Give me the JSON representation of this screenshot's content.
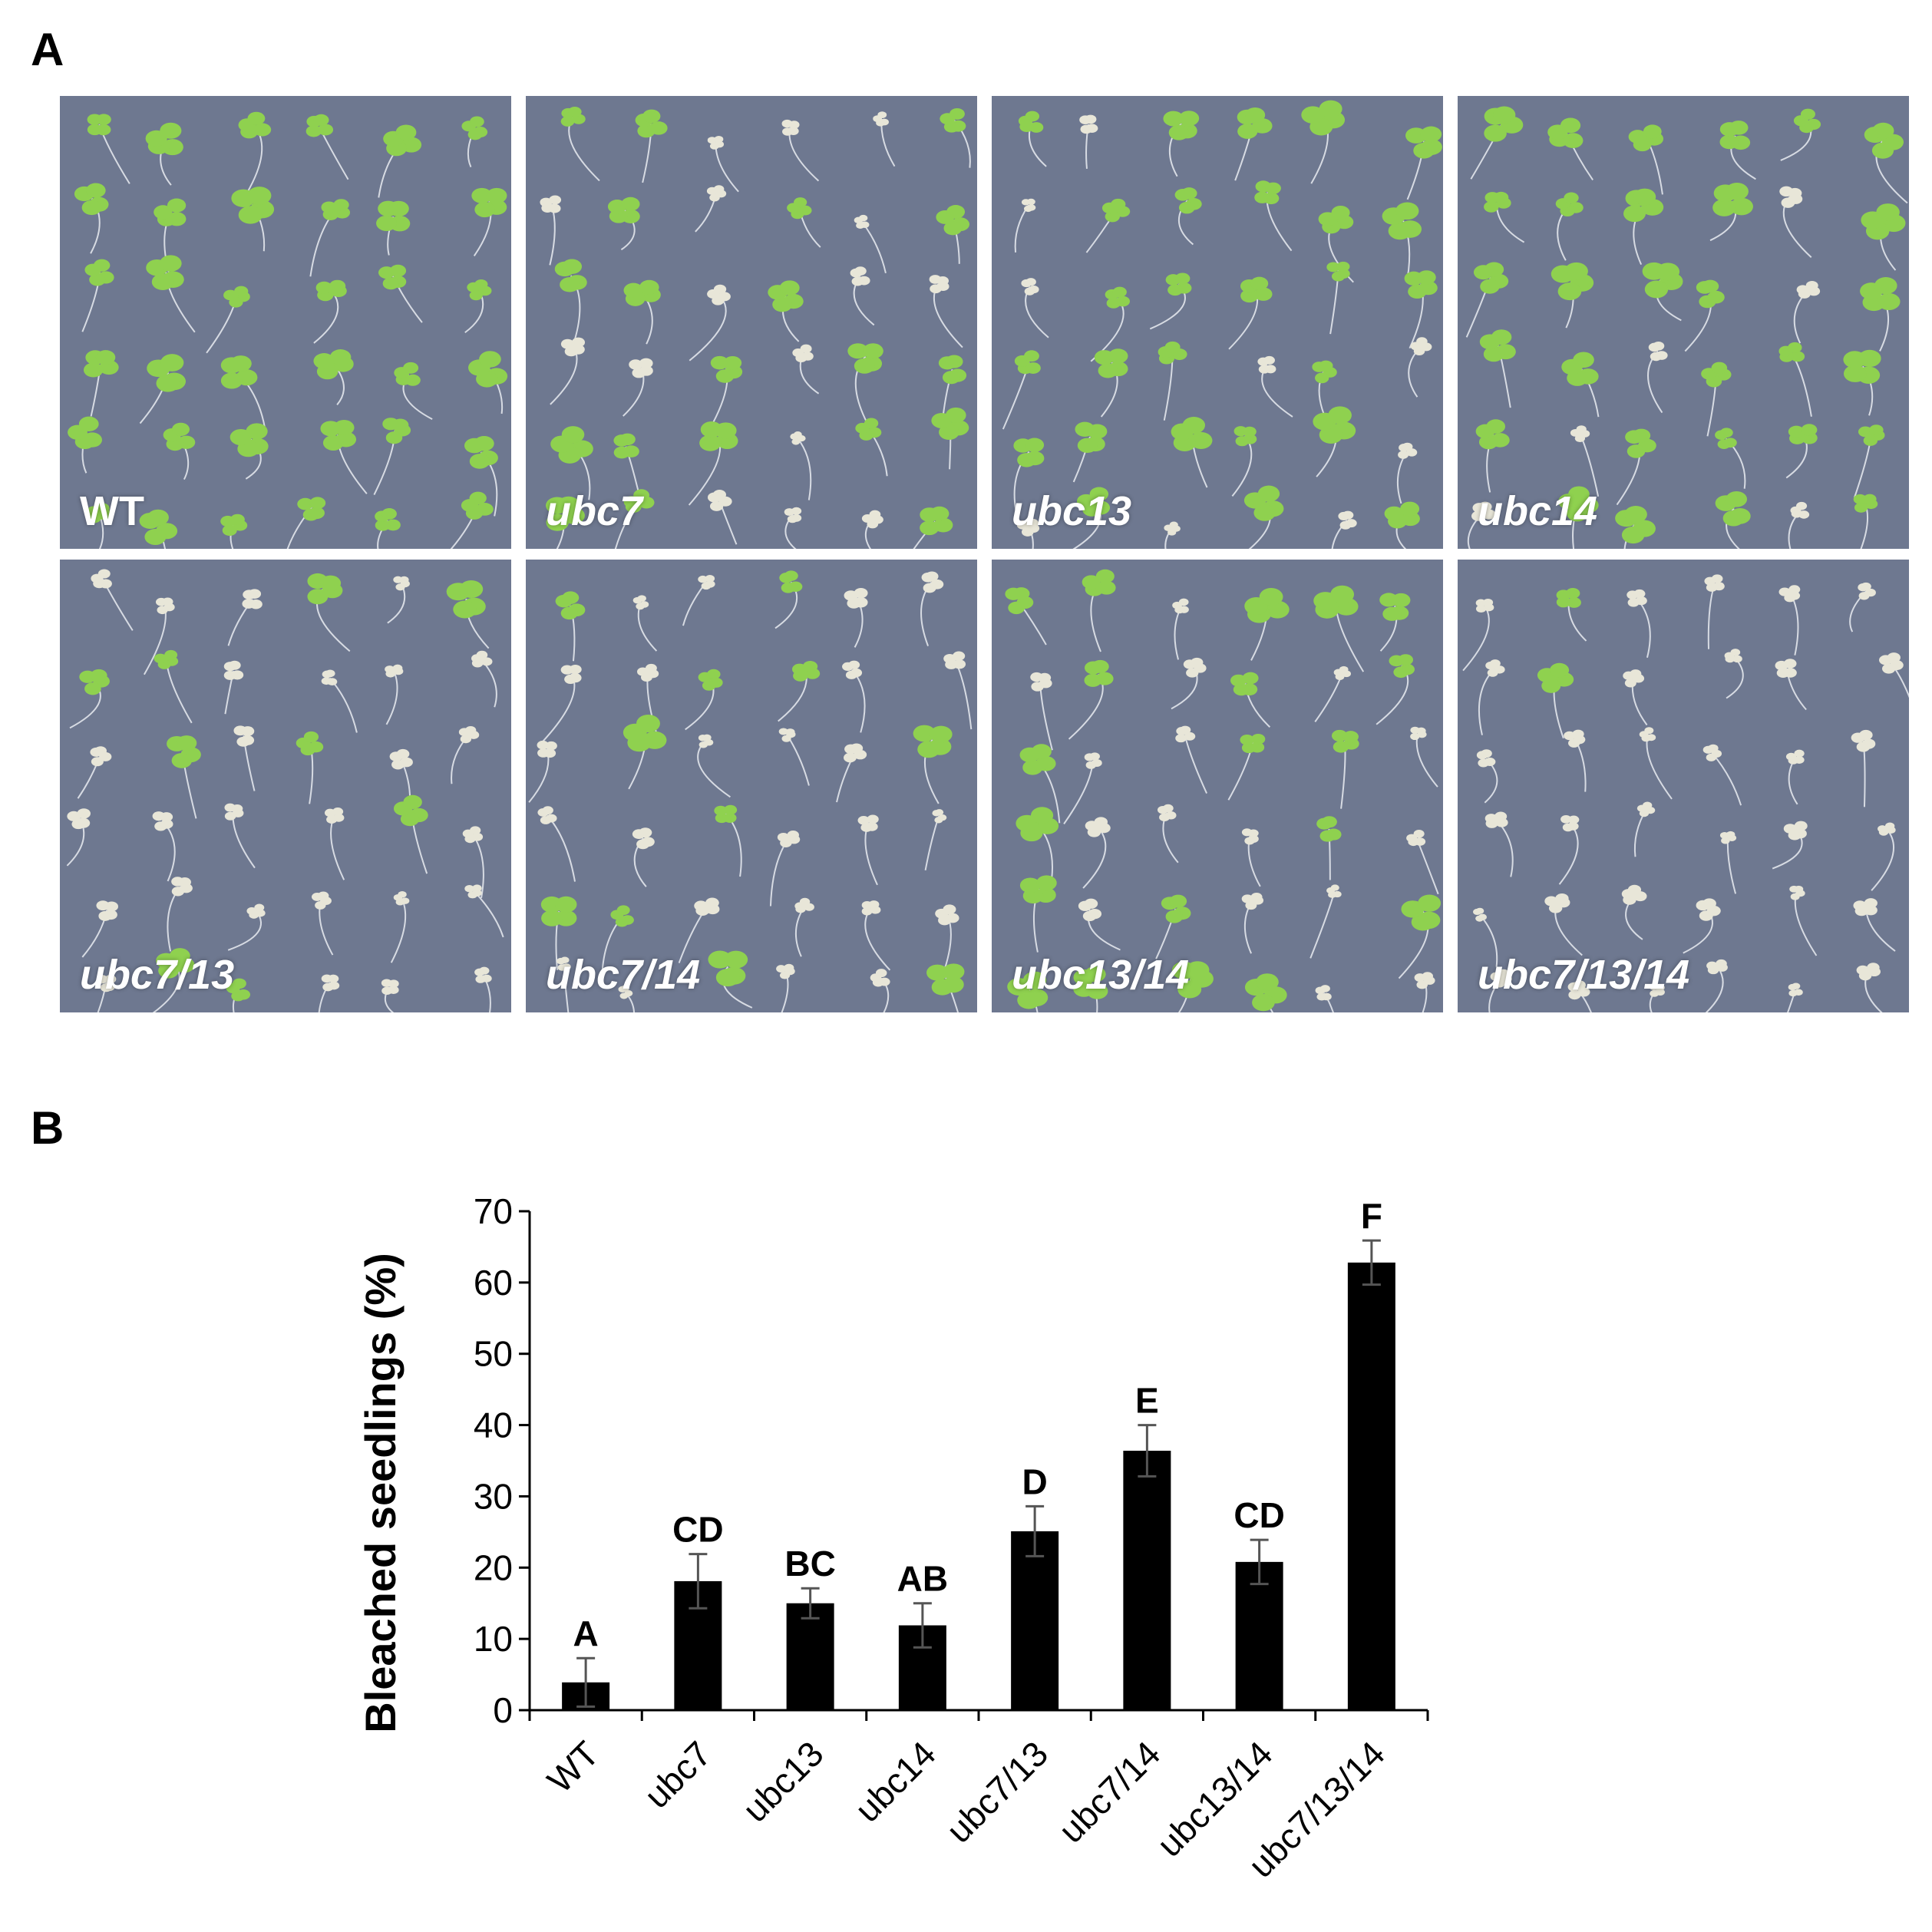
{
  "panels": {
    "a": "A",
    "b": "B"
  },
  "photos": [
    {
      "label": "WT",
      "italic": false,
      "green_fraction": 0.98
    },
    {
      "label": "ubc7",
      "italic": true,
      "green_fraction": 0.55
    },
    {
      "label": "ubc13",
      "italic": true,
      "green_fraction": 0.75
    },
    {
      "label": "ubc14",
      "italic": true,
      "green_fraction": 0.8
    },
    {
      "label": "ubc7/13",
      "italic": true,
      "green_fraction": 0.2
    },
    {
      "label": "ubc7/14",
      "italic": true,
      "green_fraction": 0.25
    },
    {
      "label": "ubc13/14",
      "italic": true,
      "green_fraction": 0.6
    },
    {
      "label": "ubc7/13/14",
      "italic": true,
      "green_fraction": 0.05
    }
  ],
  "colors": {
    "plate": "#6e7890",
    "green_seedling": "#8fd14f",
    "bleached_seedling": "#e8e6d8",
    "bar": "#000000",
    "error_bar": "#555555"
  },
  "chart_data": {
    "type": "bar",
    "title": "",
    "xlabel": "",
    "ylabel": "Bleached seedlings (%)",
    "ylim": [
      0,
      70
    ],
    "yticks": [
      0,
      10,
      20,
      30,
      40,
      50,
      60,
      70
    ],
    "categories": [
      "WT",
      "ubc7",
      "ubc13",
      "ubc14",
      "ubc7/13",
      "ubc7/14",
      "ubc13/14",
      "ubc7/13/14"
    ],
    "values": [
      3.9,
      18.1,
      15.0,
      11.9,
      25.1,
      36.4,
      20.8,
      62.8
    ],
    "errors": [
      3.4,
      3.8,
      2.1,
      3.1,
      3.5,
      3.6,
      3.1,
      3.1
    ],
    "significance_letters": [
      "A",
      "CD",
      "BC",
      "AB",
      "D",
      "E",
      "CD",
      "F"
    ]
  }
}
